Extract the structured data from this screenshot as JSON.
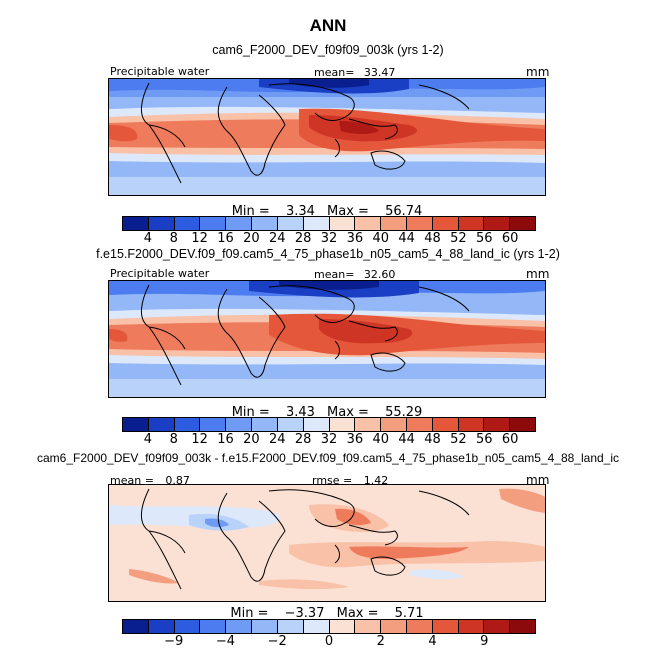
{
  "title": "ANN",
  "colors": [
    "#0a1f8f",
    "#1a3fc4",
    "#2e5ce0",
    "#4d7cf0",
    "#6f9bf5",
    "#94b8f7",
    "#b9d2f9",
    "#dde8fb",
    "#fbe0d4",
    "#f8c1a8",
    "#f49e80",
    "#ee7b5c",
    "#e4573b",
    "#cf3525",
    "#b01a16",
    "#8c0a0c"
  ],
  "panels": [
    {
      "subtitle": "cam6_F2000_DEV_f09f09_003k (yrs 1-2)",
      "varname": "Precipitable water",
      "mean_label": "mean=",
      "mean_value": "33.47",
      "units": "mm",
      "min_label": "Min =",
      "min_value": "3.34",
      "max_label": "Max =",
      "max_value": "56.74",
      "ticks": [
        "4",
        "8",
        "12",
        "16",
        "20",
        "24",
        "28",
        "32",
        "36",
        "40",
        "44",
        "48",
        "52",
        "56",
        "60"
      ]
    },
    {
      "subtitle": "f.e15.F2000_DEV.f09_f09.cam5_4_75_phase1b_n05_cam5_4_88_land_ic (yrs 1-2)",
      "varname": "Precipitable water",
      "mean_label": "mean=",
      "mean_value": "32.60",
      "units": "mm",
      "min_label": "Min =",
      "min_value": "3.43",
      "max_label": "Max =",
      "max_value": "55.29",
      "ticks": [
        "4",
        "8",
        "12",
        "16",
        "20",
        "24",
        "28",
        "32",
        "36",
        "40",
        "44",
        "48",
        "52",
        "56",
        "60"
      ]
    },
    {
      "subtitle": "cam6_F2000_DEV_f09f09_003k - f.e15.F2000_DEV.f09_f09.cam5_4_75_phase1b_n05_cam5_4_88_land_ic",
      "mean_label": "mean =",
      "mean_value": "0.87",
      "rmse_label": "rmse =",
      "rmse_value": "1.42",
      "units": "mm",
      "min_label": "Min =",
      "min_value": "−3.37",
      "max_label": "Max =",
      "max_value": "5.71",
      "ticks": [
        "−9",
        "−4",
        "−2",
        "0",
        "2",
        "4",
        "9"
      ]
    }
  ],
  "chart_data": [
    {
      "type": "heatmap",
      "title": "cam6_F2000_DEV_f09f09_003k (yrs 1-2)",
      "variable": "Precipitable water",
      "units": "mm",
      "mean": 33.47,
      "min": 3.34,
      "max": 56.74,
      "contour_levels": [
        4,
        8,
        12,
        16,
        20,
        24,
        28,
        32,
        36,
        40,
        44,
        48,
        52,
        56,
        60
      ]
    },
    {
      "type": "heatmap",
      "title": "f.e15.F2000_DEV.f09_f09.cam5_4_75_phase1b_n05_cam5_4_88_land_ic (yrs 1-2)",
      "variable": "Precipitable water",
      "units": "mm",
      "mean": 32.6,
      "min": 3.43,
      "max": 55.29,
      "contour_levels": [
        4,
        8,
        12,
        16,
        20,
        24,
        28,
        32,
        36,
        40,
        44,
        48,
        52,
        56,
        60
      ]
    },
    {
      "type": "heatmap",
      "title": "cam6_F2000_DEV_f09f09_003k - f.e15.F2000_DEV.f09_f09.cam5_4_75_phase1b_n05_cam5_4_88_land_ic",
      "units": "mm",
      "mean": 0.87,
      "rmse": 1.42,
      "min": -3.37,
      "max": 5.71,
      "contour_levels": [
        -9,
        -4,
        -2,
        0,
        2,
        4,
        9
      ]
    }
  ]
}
